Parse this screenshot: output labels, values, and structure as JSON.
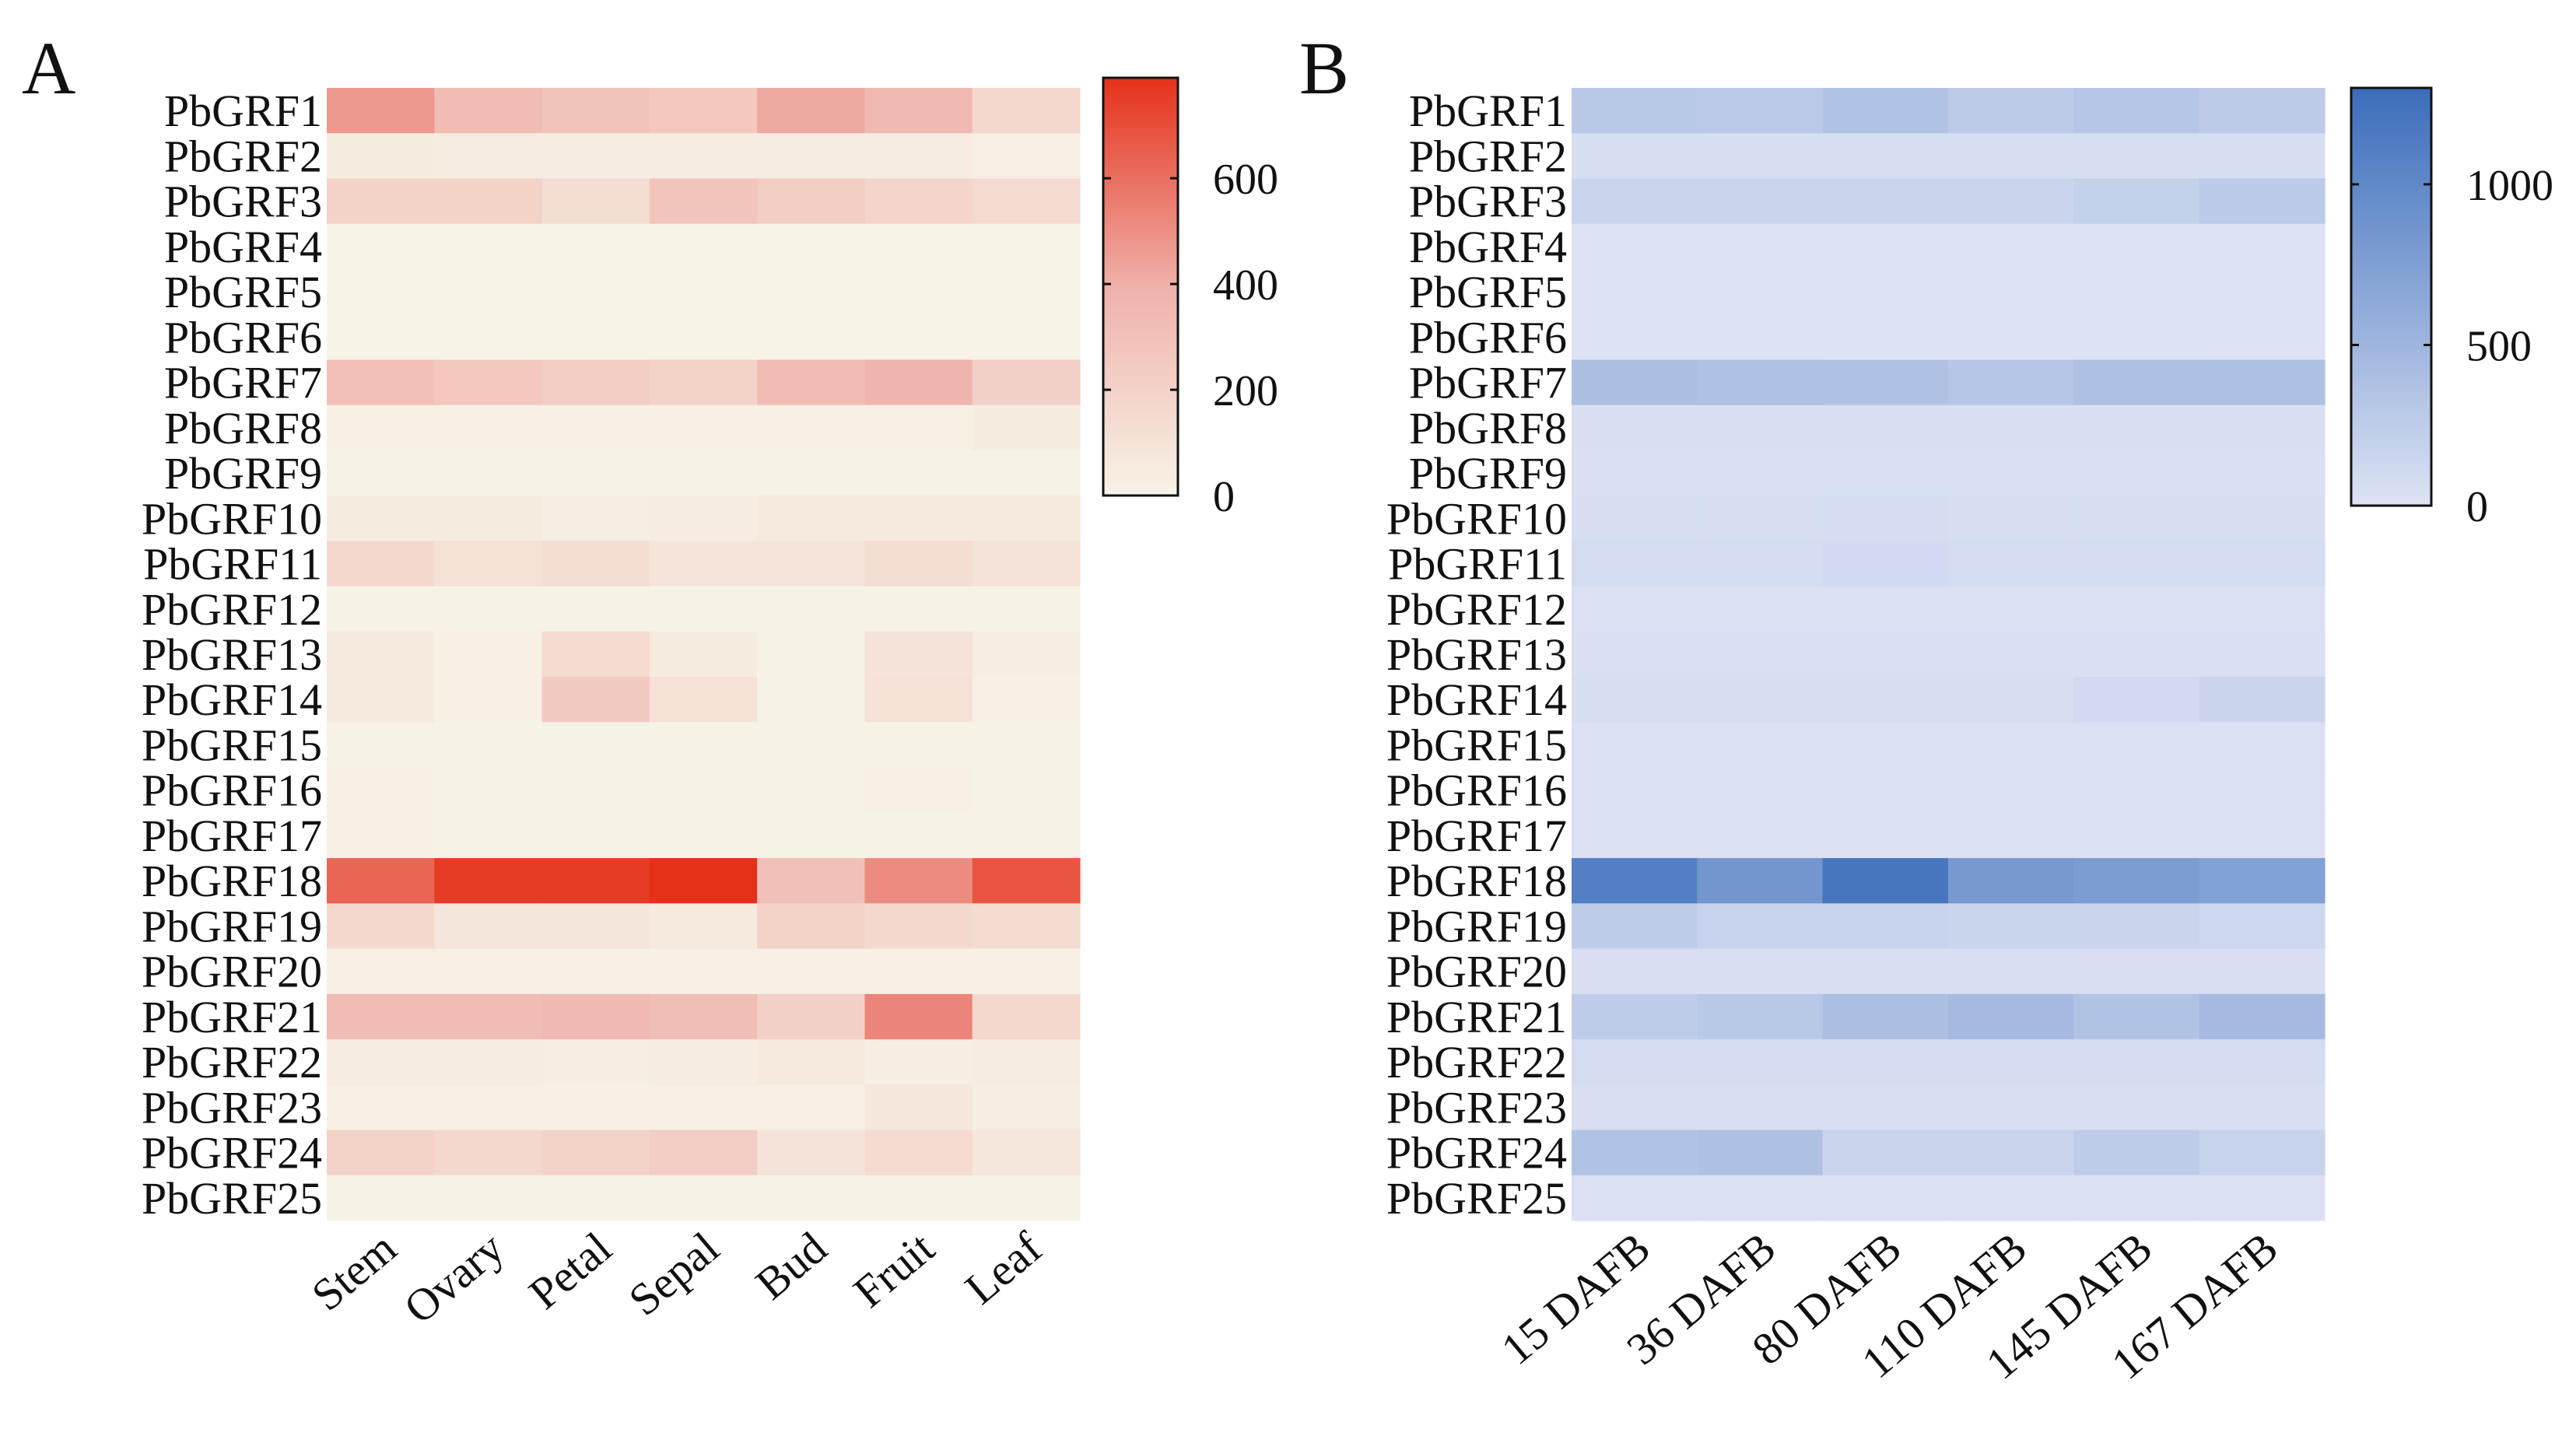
{
  "chart_data": [
    {
      "type": "heatmap",
      "panel_label": "A",
      "title": "",
      "xlabel": "",
      "ylabel": "",
      "rows": [
        "PbGRF1",
        "PbGRF2",
        "PbGRF3",
        "PbGRF4",
        "PbGRF5",
        "PbGRF6",
        "PbGRF7",
        "PbGRF8",
        "PbGRF9",
        "PbGRF10",
        "PbGRF11",
        "PbGRF12",
        "PbGRF13",
        "PbGRF14",
        "PbGRF15",
        "PbGRF16",
        "PbGRF17",
        "PbGRF18",
        "PbGRF19",
        "PbGRF20",
        "PbGRF21",
        "PbGRF22",
        "PbGRF23",
        "PbGRF24",
        "PbGRF25"
      ],
      "columns": [
        "Stem",
        "Ovary",
        "Petal",
        "Sepal",
        "Bud",
        "Fruit",
        "Leaf"
      ],
      "values": [
        [
          470,
          330,
          290,
          260,
          420,
          350,
          160
        ],
        [
          50,
          40,
          40,
          40,
          40,
          40,
          25
        ],
        [
          200,
          200,
          130,
          280,
          230,
          180,
          150
        ],
        [
          0,
          0,
          0,
          0,
          0,
          0,
          0
        ],
        [
          0,
          0,
          0,
          0,
          0,
          0,
          0
        ],
        [
          0,
          0,
          0,
          0,
          0,
          0,
          0
        ],
        [
          310,
          260,
          230,
          200,
          330,
          380,
          210
        ],
        [
          10,
          10,
          10,
          10,
          10,
          10,
          50
        ],
        [
          5,
          5,
          5,
          5,
          5,
          5,
          5
        ],
        [
          50,
          50,
          30,
          40,
          60,
          60,
          60
        ],
        [
          160,
          110,
          130,
          90,
          90,
          130,
          100
        ],
        [
          5,
          5,
          5,
          5,
          5,
          5,
          5
        ],
        [
          60,
          20,
          150,
          50,
          5,
          100,
          30
        ],
        [
          60,
          20,
          250,
          110,
          5,
          110,
          10
        ],
        [
          5,
          5,
          5,
          5,
          5,
          5,
          5
        ],
        [
          15,
          5,
          5,
          5,
          5,
          20,
          5
        ],
        [
          10,
          5,
          5,
          5,
          5,
          5,
          5
        ],
        [
          630,
          760,
          760,
          790,
          300,
          510,
          680
        ],
        [
          170,
          80,
          80,
          60,
          200,
          160,
          140
        ],
        [
          10,
          10,
          10,
          10,
          10,
          10,
          10
        ],
        [
          330,
          330,
          340,
          320,
          210,
          530,
          160
        ],
        [
          40,
          40,
          30,
          40,
          60,
          30,
          40
        ],
        [
          20,
          20,
          20,
          20,
          20,
          70,
          30
        ],
        [
          200,
          170,
          200,
          230,
          100,
          150,
          70
        ],
        [
          5,
          5,
          5,
          5,
          5,
          5,
          5
        ]
      ],
      "colorbar": {
        "min": 0,
        "max": 790,
        "ticks": [
          0,
          200,
          400,
          600
        ]
      },
      "colors": {
        "low": "#f7f3e7",
        "mid": "#efb1aa",
        "high": "#e5311a"
      }
    },
    {
      "type": "heatmap",
      "panel_label": "B",
      "title": "",
      "xlabel": "",
      "ylabel": "",
      "rows": [
        "PbGRF1",
        "PbGRF2",
        "PbGRF3",
        "PbGRF4",
        "PbGRF5",
        "PbGRF6",
        "PbGRF7",
        "PbGRF8",
        "PbGRF9",
        "PbGRF10",
        "PbGRF11",
        "PbGRF12",
        "PbGRF13",
        "PbGRF14",
        "PbGRF15",
        "PbGRF16",
        "PbGRF17",
        "PbGRF18",
        "PbGRF19",
        "PbGRF20",
        "PbGRF21",
        "PbGRF22",
        "PbGRF23",
        "PbGRF24",
        "PbGRF25"
      ],
      "columns": [
        "15 DAFB",
        "36 DAFB",
        "80 DAFB",
        "110 DAFB",
        "145 DAFB",
        "167 DAFB"
      ],
      "values": [
        [
          300,
          290,
          350,
          260,
          320,
          260
        ],
        [
          60,
          60,
          60,
          60,
          60,
          60
        ],
        [
          150,
          150,
          150,
          150,
          200,
          280
        ],
        [
          0,
          0,
          0,
          0,
          0,
          0
        ],
        [
          0,
          0,
          0,
          0,
          0,
          0
        ],
        [
          0,
          0,
          0,
          0,
          0,
          0
        ],
        [
          400,
          370,
          360,
          320,
          380,
          390
        ],
        [
          40,
          40,
          40,
          40,
          40,
          40
        ],
        [
          30,
          30,
          30,
          30,
          30,
          30
        ],
        [
          50,
          50,
          70,
          50,
          50,
          50
        ],
        [
          80,
          80,
          100,
          80,
          80,
          80
        ],
        [
          20,
          20,
          20,
          20,
          20,
          20
        ],
        [
          30,
          30,
          30,
          30,
          30,
          30
        ],
        [
          60,
          60,
          60,
          60,
          100,
          150
        ],
        [
          20,
          20,
          20,
          20,
          20,
          20
        ],
        [
          20,
          20,
          20,
          20,
          20,
          20
        ],
        [
          20,
          20,
          20,
          20,
          20,
          20
        ],
        [
          1100,
          850,
          1200,
          820,
          780,
          730
        ],
        [
          250,
          180,
          180,
          160,
          150,
          130
        ],
        [
          40,
          40,
          40,
          40,
          40,
          40
        ],
        [
          250,
          300,
          400,
          450,
          350,
          450
        ],
        [
          80,
          80,
          80,
          80,
          80,
          80
        ],
        [
          40,
          40,
          40,
          40,
          40,
          40
        ],
        [
          350,
          380,
          150,
          150,
          250,
          180
        ],
        [
          20,
          20,
          20,
          20,
          20,
          20
        ]
      ],
      "colorbar": {
        "min": 0,
        "max": 1300,
        "ticks": [
          0,
          500,
          1000
        ]
      },
      "colors": {
        "low": "#dde3f4",
        "high": "#3b6dbb"
      }
    }
  ]
}
